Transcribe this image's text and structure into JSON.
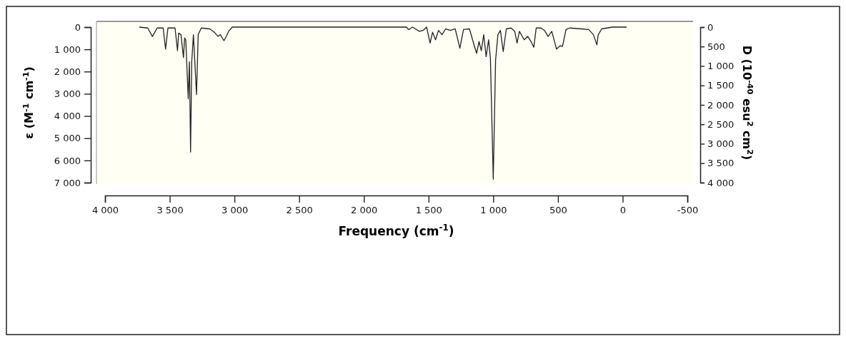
{
  "chart_data": {
    "type": "line",
    "xlabel": "Frequency (cm$^{-1}$)",
    "ylabel": "ε (M$^{-1}$ cm$^{-1}$)",
    "y2label": "D (10$^{-40}$ esu$^{2}$ cm$^{2}$)",
    "xlim": [
      4000,
      -500
    ],
    "xticks": [
      {
        "value": 4000,
        "label": "4 000"
      },
      {
        "value": 3500,
        "label": "3 500"
      },
      {
        "value": 3000,
        "label": "3 000"
      },
      {
        "value": 2500,
        "label": "2 500"
      },
      {
        "value": 2000,
        "label": "2 000"
      },
      {
        "value": 1500,
        "label": "1 500"
      },
      {
        "value": 1000,
        "label": "1 000"
      },
      500,
      0,
      -500
    ],
    "ylim": [
      7000,
      0
    ],
    "yticks": [
      0,
      {
        "value": 1000,
        "label": "1 000"
      },
      {
        "value": 2000,
        "label": "2 000"
      },
      {
        "value": 3000,
        "label": "3 000"
      },
      {
        "value": 4000,
        "label": "4 000"
      },
      {
        "value": 5000,
        "label": "5 000"
      },
      {
        "value": 6000,
        "label": "6 000"
      },
      {
        "value": 7000,
        "label": "7 000"
      }
    ],
    "y2lim": [
      4000,
      0
    ],
    "y2ticks": [
      0,
      500,
      {
        "value": 1000,
        "label": "1 000"
      },
      {
        "value": 1500,
        "label": "1 500"
      },
      {
        "value": 2000,
        "label": "2 000"
      },
      {
        "value": 2500,
        "label": "2 500"
      },
      {
        "value": 3000,
        "label": "3 000"
      },
      {
        "value": 3500,
        "label": "3 500"
      },
      {
        "value": 4000,
        "label": "4 000"
      }
    ],
    "grid": false,
    "line_style": "solid",
    "series": [
      {
        "color": "#222222",
        "x": [
          3735,
          3670,
          3634,
          3615,
          3597,
          3551,
          3532,
          3514,
          3459,
          3440,
          3431,
          3413,
          3394,
          3385,
          3376,
          3357,
          3348,
          3339,
          3330,
          3317,
          3293,
          3280,
          3256,
          3191,
          3155,
          3127,
          3109,
          3081,
          3063,
          3045,
          3017,
          1672,
          1653,
          1625,
          1571,
          1543,
          1515,
          1488,
          1469,
          1446,
          1423,
          1396,
          1368,
          1331,
          1294,
          1258,
          1230,
          1184,
          1156,
          1129,
          1110,
          1092,
          1074,
          1055,
          1036,
          1022,
          1000,
          982,
          964,
          945,
          923,
          899,
          863,
          834,
          816,
          798,
          761,
          733,
          705,
          687,
          668,
          631,
          604,
          576,
          548,
          511,
          484,
          465,
          438,
          410,
          319,
          263,
          226,
          199,
          189,
          162,
          79,
          -30
        ],
        "values": [
          0,
          40,
          420,
          230,
          40,
          40,
          990,
          40,
          40,
          1060,
          270,
          340,
          1370,
          490,
          570,
          3230,
          1560,
          5620,
          1560,
          340,
          3040,
          340,
          40,
          80,
          230,
          420,
          340,
          610,
          420,
          190,
          0,
          0,
          110,
          0,
          190,
          150,
          0,
          720,
          230,
          570,
          150,
          340,
          80,
          150,
          80,
          950,
          110,
          80,
          650,
          1180,
          650,
          1060,
          340,
          1330,
          570,
          1400,
          6850,
          1480,
          340,
          150,
          1100,
          80,
          40,
          190,
          720,
          190,
          570,
          420,
          680,
          910,
          40,
          40,
          150,
          420,
          190,
          990,
          840,
          870,
          110,
          40,
          80,
          110,
          340,
          800,
          340,
          80,
          0,
          0
        ]
      }
    ]
  }
}
